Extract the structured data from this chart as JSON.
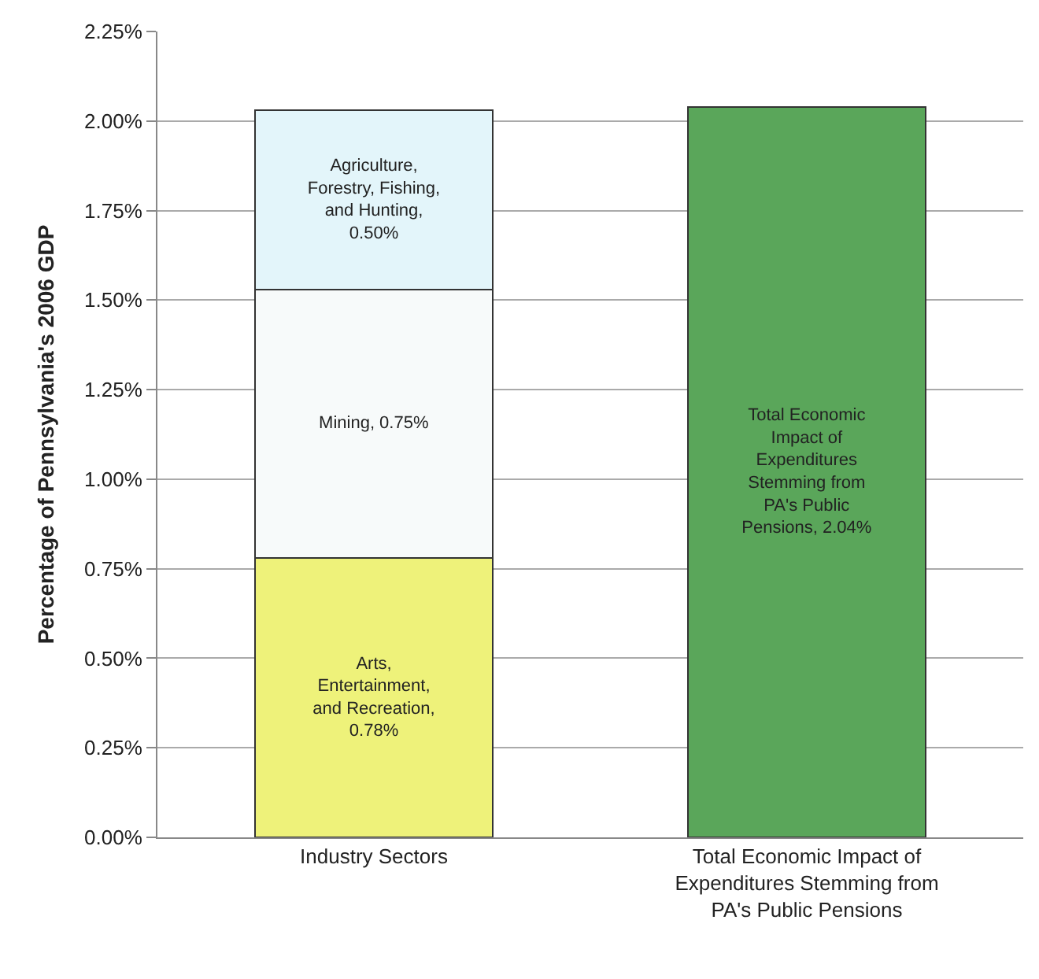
{
  "chart_data": {
    "type": "bar",
    "stacked": true,
    "ylabel": "Percentage of Pennsylvania's 2006 GDP",
    "categories": [
      "Industry Sectors",
      "Total Economic Impact of\nExpenditures Stemming from\nPA's Public Pensions"
    ],
    "series": [
      {
        "color": "#eef27a",
        "values": [
          0.78,
          null
        ],
        "value_labels": [
          "Arts,\nEntertainment,\nand Recreation,\n0.78%",
          null
        ]
      },
      {
        "color": "#f7fafa",
        "values": [
          0.75,
          null
        ],
        "value_labels": [
          "Mining, 0.75%",
          null
        ]
      },
      {
        "color": "#e3f5fa",
        "values": [
          0.5,
          null
        ],
        "value_labels": [
          "Agriculture,\nForestry, Fishing,\nand Hunting,\n0.50%",
          null
        ]
      },
      {
        "color": "#5aa65a",
        "values": [
          null,
          2.04
        ],
        "value_labels": [
          null,
          "Total Economic\nImpact of\nExpenditures\nStemming from\nPA's Public\nPensions, 2.04%"
        ]
      }
    ],
    "ylim": [
      0,
      2.25
    ],
    "yticks": [
      {
        "value": 0,
        "label": "0.00%"
      },
      {
        "value": 0.25,
        "label": "0.25%"
      },
      {
        "value": 0.5,
        "label": "0.50%"
      },
      {
        "value": 0.75,
        "label": "0.75%"
      },
      {
        "value": 1.0,
        "label": "1.00%"
      },
      {
        "value": 1.25,
        "label": "1.25%"
      },
      {
        "value": 1.5,
        "label": "1.50%"
      },
      {
        "value": 1.75,
        "label": "1.75%"
      },
      {
        "value": 2.0,
        "label": "2.00%"
      },
      {
        "value": 2.25,
        "label": "2.25%"
      }
    ],
    "grid": "y"
  }
}
